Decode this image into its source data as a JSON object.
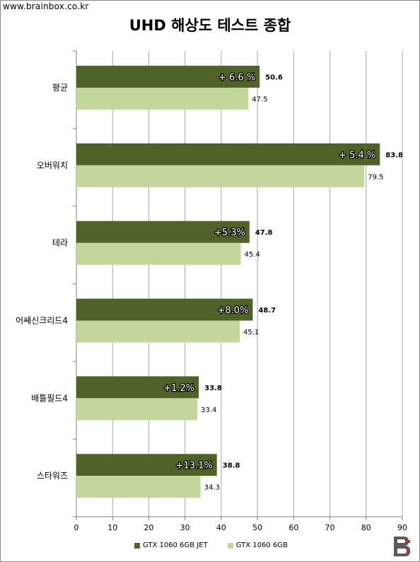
{
  "site": "www.brainbox.co.kr",
  "colors": {
    "jet": "#4f6228",
    "base": "#c3d69b",
    "grid": "#a6a6a6",
    "logo": "#5a5a5a",
    "logo_accent": "#d9261c"
  },
  "logo_icon": "brainbox-b-logo-icon",
  "chart_data": {
    "type": "bar",
    "orientation": "horizontal",
    "title": "UHD 해상도 테스트 종합",
    "categories": [
      "평균",
      "오버워치",
      "테라",
      "어쌔신크리드4",
      "배틀필드4",
      "스타워즈"
    ],
    "series": [
      {
        "name": "GTX 1060 6GB JET",
        "values": [
          50.6,
          83.8,
          47.8,
          48.7,
          33.8,
          38.8
        ],
        "color": "#4f6228"
      },
      {
        "name": "GTX 1060 6GB",
        "values": [
          47.5,
          79.5,
          45.4,
          45.1,
          33.4,
          34.3
        ],
        "color": "#c3d69b"
      }
    ],
    "annotations": [
      "+ 6.6 %",
      "+ 5.4 %",
      "+5.3%",
      "+8.0%",
      "+1.2%",
      "+13.1%"
    ],
    "xlim": [
      0,
      90
    ],
    "x_ticks": [
      "0",
      "10",
      "20",
      "30",
      "40",
      "50",
      "60",
      "70",
      "80",
      "90"
    ],
    "grid": true,
    "legend_position": "bottom"
  }
}
